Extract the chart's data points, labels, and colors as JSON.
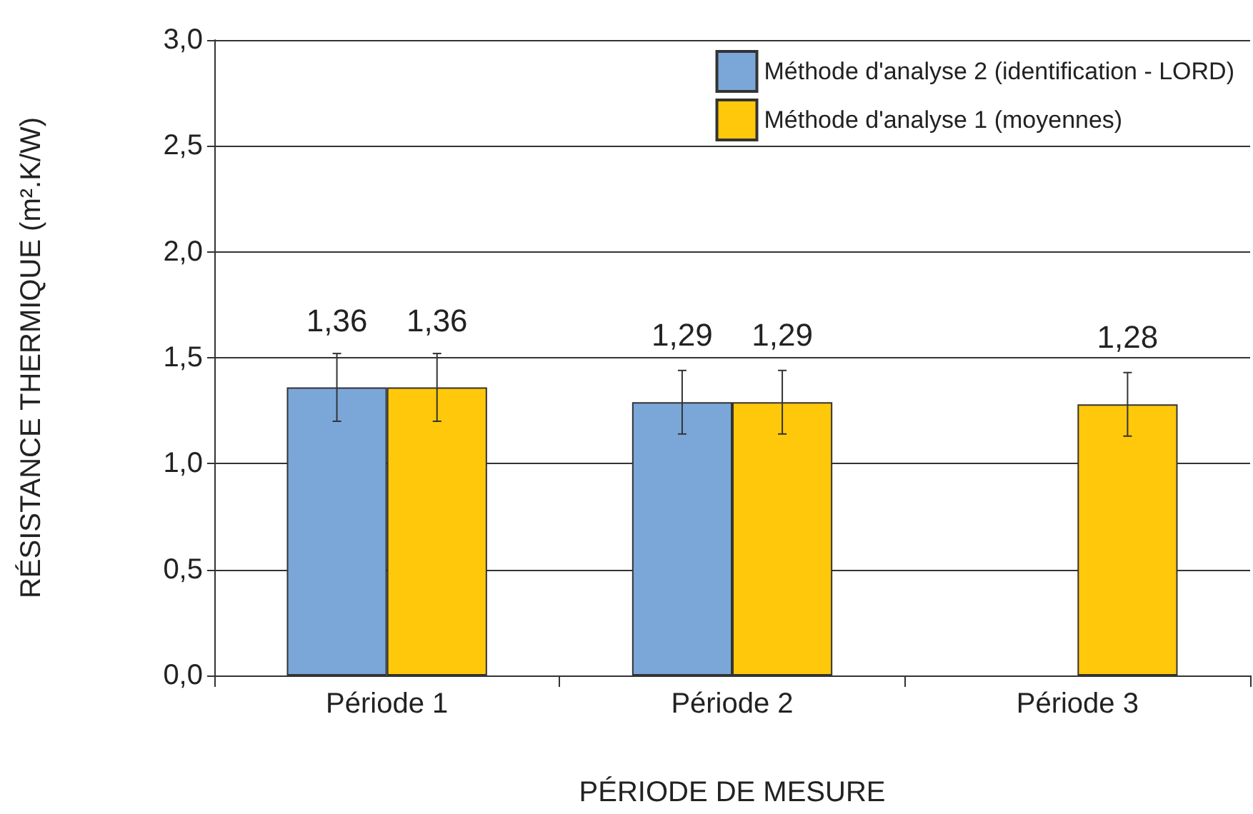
{
  "chart_data": {
    "type": "bar",
    "ylabel": "RÉSISTANCE THERMIQUE (m².K/W)",
    "xlabel": "PÉRIODE DE MESURE",
    "categories": [
      "Période 1",
      "Période 2",
      "Période 3"
    ],
    "series": [
      {
        "name": "Méthode d'analyse 2 (identification - LORD)",
        "color": "#7ba7d8",
        "values": [
          1.36,
          1.29,
          null
        ],
        "errors": [
          0.16,
          0.15,
          null
        ],
        "value_labels": [
          "1,36",
          "1,29",
          null
        ]
      },
      {
        "name": "Méthode d'analyse 1 (moyennes)",
        "color": "#ffc80a",
        "values": [
          1.36,
          1.29,
          1.28
        ],
        "errors": [
          0.16,
          0.15,
          0.15
        ],
        "value_labels": [
          "1,36",
          "1,29",
          "1,28"
        ]
      }
    ],
    "ylim": [
      0,
      3
    ],
    "yticks": [
      {
        "value": 0,
        "label": "0,0"
      },
      {
        "value": 0.5,
        "label": "0,5"
      },
      {
        "value": 1,
        "label": "1,0"
      },
      {
        "value": 1.5,
        "label": "1,5"
      },
      {
        "value": 2,
        "label": "2,0"
      },
      {
        "value": 2.5,
        "label": "2,5"
      },
      {
        "value": 3,
        "label": "3,0"
      }
    ],
    "grid": "y",
    "legend": "top right"
  }
}
